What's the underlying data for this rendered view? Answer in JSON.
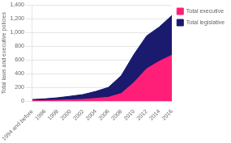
{
  "chart_data": {
    "type": "area",
    "categories": [
      "1994 and before",
      "1996",
      "1998",
      "2000",
      "2002",
      "2004",
      "2006",
      "2008",
      "2010",
      "2012",
      "2014",
      "2016"
    ],
    "series": [
      {
        "name": "Total legislative",
        "color": "#1a1a6e",
        "values": [
          22,
          32,
          48,
          70,
          95,
          140,
          200,
          370,
          680,
          950,
          1080,
          1250
        ]
      },
      {
        "name": "Total executive",
        "color": "#ff1f78",
        "values": [
          5,
          8,
          12,
          18,
          25,
          38,
          55,
          110,
          270,
          470,
          580,
          670
        ]
      }
    ],
    "ylabel": "Total laws and executive policies",
    "ylim": [
      0,
      1400
    ],
    "yticks": [
      0,
      200,
      400,
      600,
      800,
      {
        "value": 1000,
        "label": "1,000"
      },
      {
        "value": 1200,
        "label": "1,200"
      },
      {
        "value": 1400,
        "label": "1,400"
      }
    ],
    "grid": true,
    "legend": "right"
  }
}
